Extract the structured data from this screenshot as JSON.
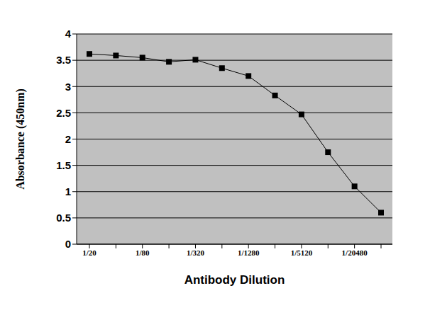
{
  "chart_data": {
    "type": "line",
    "x_label": "Antibody Dilution",
    "y_label": "Absorbance (450nm)",
    "categories": [
      "1/20",
      null,
      "1/80",
      null,
      "1/320",
      null,
      "1/1280",
      null,
      "1/5120",
      null,
      "1/20480",
      null
    ],
    "values": [
      3.62,
      3.59,
      3.55,
      3.47,
      3.51,
      3.35,
      3.2,
      2.83,
      2.47,
      1.75,
      1.1,
      0.6
    ],
    "color": "#000000",
    "marker": "square",
    "ylim": [
      0,
      4
    ],
    "yticks": [
      0,
      0.5,
      1,
      1.5,
      2,
      2.5,
      3,
      3.5,
      4
    ],
    "grid": true
  }
}
